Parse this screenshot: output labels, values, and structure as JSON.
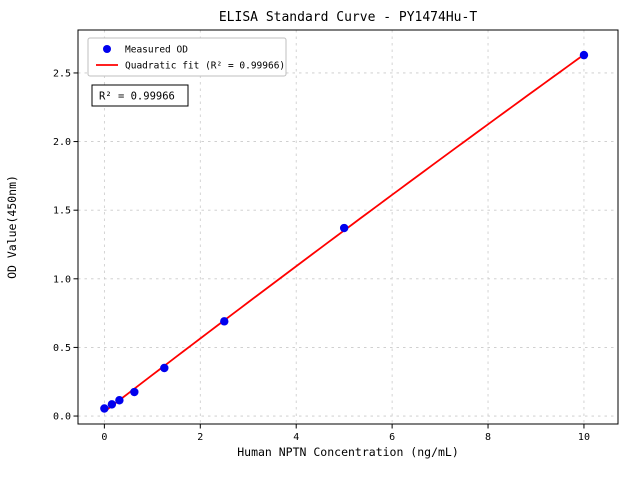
{
  "chart_data": {
    "type": "scatter",
    "title": "ELISA Standard Curve - PY1474Hu-T",
    "xlabel": "Human NPTN Concentration (ng/mL)",
    "ylabel": "OD Value(450nm)",
    "xlim": [
      -0.55,
      10.71
    ],
    "ylim": [
      -0.058,
      2.813
    ],
    "xticks": [
      0,
      2,
      4,
      6,
      8,
      10
    ],
    "yticks": [
      0.0,
      0.5,
      1.0,
      1.5,
      2.0,
      2.5
    ],
    "grid": "dashed",
    "series": [
      {
        "name": "Measured OD",
        "type": "scatter",
        "color": "#0000ee",
        "x": [
          0,
          0.156,
          0.313,
          0.625,
          1.25,
          2.5,
          5,
          10
        ],
        "y": [
          0.055,
          0.085,
          0.115,
          0.175,
          0.35,
          0.69,
          1.37,
          2.63
        ]
      },
      {
        "name": "Quadratic fit (R² = 0.99966)",
        "type": "quadratic-fit",
        "color": "#ff0000",
        "x_range": [
          0,
          10
        ]
      }
    ],
    "legend": {
      "position": "upper-left"
    },
    "annotation": {
      "text": "R² = 0.99966"
    }
  }
}
